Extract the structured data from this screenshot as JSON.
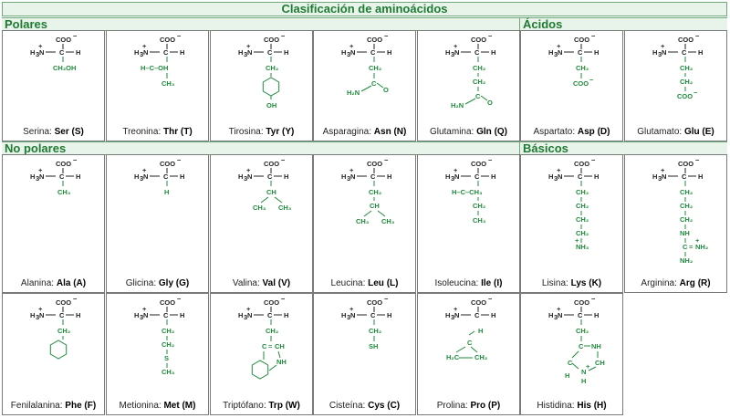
{
  "title": "Clasificación de aminoácidos",
  "groups": {
    "polares": "Polares",
    "acidos": "Ácidos",
    "no_polares": "No polares",
    "basicos": "Básicos"
  },
  "backbone": {
    "coo": "COO",
    "nh3": "H",
    "n_sub": "3",
    "n": "N",
    "c": "C",
    "h": "H"
  },
  "amino_acids": [
    {
      "name": "Serina",
      "abbr": "Ser",
      "code": "(S)",
      "side": [
        "CH2OH"
      ]
    },
    {
      "name": "Treonina",
      "abbr": "Thr",
      "code": "(T)",
      "side": [
        "H–C–OH",
        "CH3"
      ]
    },
    {
      "name": "Tirosina",
      "abbr": "Tyr",
      "code": "(Y)",
      "side": [
        "CH2",
        "ring",
        "OH"
      ]
    },
    {
      "name": "Asparagina",
      "abbr": "Asn",
      "code": "(N)",
      "side": [
        "CH2",
        "C=O",
        "H2N"
      ]
    },
    {
      "name": "Glutamina",
      "abbr": "Gln",
      "code": "(Q)",
      "side": [
        "CH2",
        "CH2",
        "C=O",
        "H2N"
      ]
    },
    {
      "name": "Aspartato",
      "abbr": "Asp",
      "code": "(D)",
      "side": [
        "CH2",
        "COO−"
      ]
    },
    {
      "name": "Glutamato",
      "abbr": "Glu",
      "code": "(E)",
      "side": [
        "CH2",
        "CH2",
        "COO−"
      ]
    },
    {
      "name": "Alanina",
      "abbr": "Ala",
      "code": "(A)",
      "side": [
        "CH3"
      ]
    },
    {
      "name": "Glicina",
      "abbr": "Gly",
      "code": "(G)",
      "side": [
        "H"
      ]
    },
    {
      "name": "Valina",
      "abbr": "Val",
      "code": "(V)",
      "side": [
        "CH",
        "CH3 CH3"
      ]
    },
    {
      "name": "Leucina",
      "abbr": "Leu",
      "code": "(L)",
      "side": [
        "CH2",
        "CH",
        "CH3 CH3"
      ]
    },
    {
      "name": "Isoleucina",
      "abbr": "Ile",
      "code": "(I)",
      "side": [
        "H–C–CH3",
        "CH2",
        "CH3"
      ]
    },
    {
      "name": "Lisina",
      "abbr": "Lys",
      "code": "(K)",
      "side": [
        "CH2",
        "CH2",
        "CH2",
        "CH2",
        "NH3+"
      ]
    },
    {
      "name": "Arginina",
      "abbr": "Arg",
      "code": "(R)",
      "side": [
        "CH2",
        "CH2",
        "CH2",
        "NH",
        "C=NH2+",
        "NH2"
      ]
    },
    {
      "name": "Fenilalanina",
      "abbr": "Phe",
      "code": "(F)",
      "side": [
        "CH2",
        "ring"
      ]
    },
    {
      "name": "Metionina",
      "abbr": "Met",
      "code": "(M)",
      "side": [
        "CH2",
        "CH2",
        "S",
        "CH3"
      ]
    },
    {
      "name": "Triptófano",
      "abbr": "Trp",
      "code": "(W)",
      "side": [
        "CH2",
        "C=CH",
        "NH",
        "ring"
      ]
    },
    {
      "name": "Cisteína",
      "abbr": "Cys",
      "code": "(C)",
      "side": [
        "CH2",
        "SH"
      ]
    },
    {
      "name": "Prolina",
      "abbr": "Pro",
      "code": "(P)",
      "side": [
        "ring"
      ]
    },
    {
      "name": "Histidina",
      "abbr": "His",
      "code": "(H)",
      "side": [
        "CH2",
        "C–NH",
        "CH",
        "N+",
        "H"
      ]
    }
  ]
}
